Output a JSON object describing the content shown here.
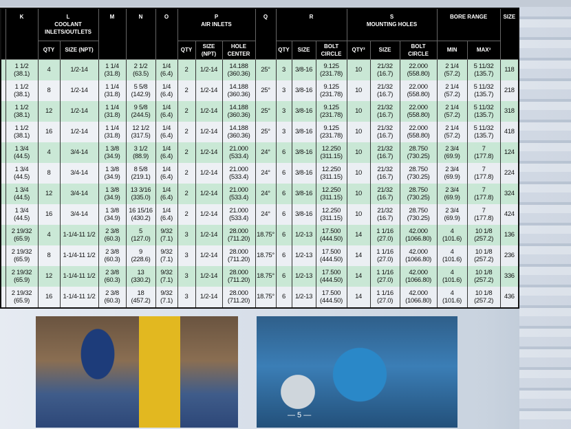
{
  "headers": {
    "k": "K",
    "l": "L",
    "l_sub": "COOLANT INLETS/OUTLETS",
    "m": "M",
    "n": "N",
    "o": "O",
    "p": "P",
    "p_sub": "AIR INLETS",
    "q": "Q",
    "r": "R",
    "s": "S",
    "s_sub": "MOUNTING HOLES",
    "bore": "BORE RANGE",
    "size": "SIZE",
    "qty": "QTY",
    "size_npt": "SIZE (NPT)",
    "hole_center": "HOLE CENTER",
    "size_plain": "SIZE",
    "bolt_circle": "BOLT CIRCLE",
    "qty2": "QTY²",
    "min": "MIN",
    "max3": "MAX³"
  },
  "rows": [
    {
      "k": [
        "1 1/2",
        "(38.1)"
      ],
      "lq": "4",
      "ls": "1/2-14",
      "m": [
        "1 1/4",
        "(31.8)"
      ],
      "n": [
        "2 1/2",
        "(63.5)"
      ],
      "o": [
        "1/4",
        "(6.4)"
      ],
      "pq": "2",
      "ps": "1/2-14",
      "ph": [
        "14.188",
        "(360.36)"
      ],
      "q": "25°",
      "rq": "3",
      "rs": "3/8-16",
      "rb": [
        "9.125",
        "(231.78)"
      ],
      "sq": "10",
      "ss": [
        "21/32",
        "(16.7)"
      ],
      "sb": [
        "22.000",
        "(558.80)"
      ],
      "min": [
        "2 1/4",
        "(57.2)"
      ],
      "max": [
        "5 11/32",
        "(135.7)"
      ],
      "size": "118"
    },
    {
      "k": [
        "1 1/2",
        "(38.1)"
      ],
      "lq": "8",
      "ls": "1/2-14",
      "m": [
        "1 1/4",
        "(31.8)"
      ],
      "n": [
        "5 5/8",
        "(142.9)"
      ],
      "o": [
        "1/4",
        "(6.4)"
      ],
      "pq": "2",
      "ps": "1/2-14",
      "ph": [
        "14.188",
        "(360.36)"
      ],
      "q": "25°",
      "rq": "3",
      "rs": "3/8-16",
      "rb": [
        "9.125",
        "(231.78)"
      ],
      "sq": "10",
      "ss": [
        "21/32",
        "(16.7)"
      ],
      "sb": [
        "22.000",
        "(558.80)"
      ],
      "min": [
        "2 1/4",
        "(57.2)"
      ],
      "max": [
        "5 11/32",
        "(135.7)"
      ],
      "size": "218"
    },
    {
      "k": [
        "1 1/2",
        "(38.1)"
      ],
      "lq": "12",
      "ls": "1/2-14",
      "m": [
        "1 1/4",
        "(31.8)"
      ],
      "n": [
        "9 5/8",
        "(244.5)"
      ],
      "o": [
        "1/4",
        "(6.4)"
      ],
      "pq": "2",
      "ps": "1/2-14",
      "ph": [
        "14.188",
        "(360.36)"
      ],
      "q": "25°",
      "rq": "3",
      "rs": "3/8-16",
      "rb": [
        "9.125",
        "(231.78)"
      ],
      "sq": "10",
      "ss": [
        "21/32",
        "(16.7)"
      ],
      "sb": [
        "22.000",
        "(558.80)"
      ],
      "min": [
        "2 1/4",
        "(57.2)"
      ],
      "max": [
        "5 11/32",
        "(135.7)"
      ],
      "size": "318"
    },
    {
      "k": [
        "1 1/2",
        "(38.1)"
      ],
      "lq": "16",
      "ls": "1/2-14",
      "m": [
        "1 1/4",
        "(31.8)"
      ],
      "n": [
        "12 1/2",
        "(317.5)"
      ],
      "o": [
        "1/4",
        "(6.4)"
      ],
      "pq": "2",
      "ps": "1/2-14",
      "ph": [
        "14.188",
        "(360.36)"
      ],
      "q": "25°",
      "rq": "3",
      "rs": "3/8-16",
      "rb": [
        "9.125",
        "(231.78)"
      ],
      "sq": "10",
      "ss": [
        "21/32",
        "(16.7)"
      ],
      "sb": [
        "22.000",
        "(558.80)"
      ],
      "min": [
        "2 1/4",
        "(57.2)"
      ],
      "max": [
        "5 11/32",
        "(135.7)"
      ],
      "size": "418"
    },
    {
      "k": [
        "1 3/4",
        "(44.5)"
      ],
      "lq": "4",
      "ls": "3/4-14",
      "m": [
        "1 3/8",
        "(34.9)"
      ],
      "n": [
        "3 1/2",
        "(88.9)"
      ],
      "o": [
        "1/4",
        "(6.4)"
      ],
      "pq": "2",
      "ps": "1/2-14",
      "ph": [
        "21.000",
        "(533.4)"
      ],
      "q": "24°",
      "rq": "6",
      "rs": "3/8-16",
      "rb": [
        "12.250",
        "(311.15)"
      ],
      "sq": "10",
      "ss": [
        "21/32",
        "(16.7)"
      ],
      "sb": [
        "28.750",
        "(730.25)"
      ],
      "min": [
        "2 3/4",
        "(69.9)"
      ],
      "max": [
        "7",
        "(177.8)"
      ],
      "size": "124"
    },
    {
      "k": [
        "1 3/4",
        "(44.5)"
      ],
      "lq": "8",
      "ls": "3/4-14",
      "m": [
        "1 3/8",
        "(34.9)"
      ],
      "n": [
        "8 5/8",
        "(219.1)"
      ],
      "o": [
        "1/4",
        "(6.4)"
      ],
      "pq": "2",
      "ps": "1/2-14",
      "ph": [
        "21.000",
        "(533.4)"
      ],
      "q": "24°",
      "rq": "6",
      "rs": "3/8-16",
      "rb": [
        "12.250",
        "(311.15)"
      ],
      "sq": "10",
      "ss": [
        "21/32",
        "(16.7)"
      ],
      "sb": [
        "28.750",
        "(730.25)"
      ],
      "min": [
        "2 3/4",
        "(69.9)"
      ],
      "max": [
        "7",
        "(177.8)"
      ],
      "size": "224"
    },
    {
      "k": [
        "1 3/4",
        "(44.5)"
      ],
      "lq": "12",
      "ls": "3/4-14",
      "m": [
        "1 3/8",
        "(34.9)"
      ],
      "n": [
        "13 3/16",
        "(335.0)"
      ],
      "o": [
        "1/4",
        "(6.4)"
      ],
      "pq": "2",
      "ps": "1/2-14",
      "ph": [
        "21.000",
        "(533.4)"
      ],
      "q": "24°",
      "rq": "6",
      "rs": "3/8-16",
      "rb": [
        "12.250",
        "(311.15)"
      ],
      "sq": "10",
      "ss": [
        "21/32",
        "(16.7)"
      ],
      "sb": [
        "28.750",
        "(730.25)"
      ],
      "min": [
        "2 3/4",
        "(69.9)"
      ],
      "max": [
        "7",
        "(177.8)"
      ],
      "size": "324"
    },
    {
      "k": [
        "1 3/4",
        "(44.5)"
      ],
      "lq": "16",
      "ls": "3/4-14",
      "m": [
        "1 3/8",
        "(34.9)"
      ],
      "n": [
        "16 15/16",
        "(430.2)"
      ],
      "o": [
        "1/4",
        "(6.4)"
      ],
      "pq": "2",
      "ps": "1/2-14",
      "ph": [
        "21.000",
        "(533.4)"
      ],
      "q": "24°",
      "rq": "6",
      "rs": "3/8-16",
      "rb": [
        "12.250",
        "(311.15)"
      ],
      "sq": "10",
      "ss": [
        "21/32",
        "(16.7)"
      ],
      "sb": [
        "28.750",
        "(730.25)"
      ],
      "min": [
        "2 3/4",
        "(69.9)"
      ],
      "max": [
        "7",
        "(177.8)"
      ],
      "size": "424"
    },
    {
      "k": [
        "2 19/32",
        "(65.9)"
      ],
      "lq": "4",
      "ls": "1-1/4-11 1/2",
      "m": [
        "2 3/8",
        "(60.3)"
      ],
      "n": [
        "5",
        "(127.0)"
      ],
      "o": [
        "9/32",
        "(7.1)"
      ],
      "pq": "3",
      "ps": "1/2-14",
      "ph": [
        "28.000",
        "(711.20)"
      ],
      "q": "18.75°",
      "rq": "6",
      "rs": "1/2-13",
      "rb": [
        "17.500",
        "(444.50)"
      ],
      "sq": "14",
      "ss": [
        "1 1/16",
        "(27.0)"
      ],
      "sb": [
        "42.000",
        "(1066.80)"
      ],
      "min": [
        "4",
        "(101.6)"
      ],
      "max": [
        "10 1/8",
        "(257.2)"
      ],
      "size": "136"
    },
    {
      "k": [
        "2 19/32",
        "(65.9)"
      ],
      "lq": "8",
      "ls": "1-1/4-11 1/2",
      "m": [
        "2 3/8",
        "(60.3)"
      ],
      "n": [
        "9",
        "(228.6)"
      ],
      "o": [
        "9/32",
        "(7.1)"
      ],
      "pq": "3",
      "ps": "1/2-14",
      "ph": [
        "28.000",
        "(711.20)"
      ],
      "q": "18.75°",
      "rq": "6",
      "rs": "1/2-13",
      "rb": [
        "17.500",
        "(444.50)"
      ],
      "sq": "14",
      "ss": [
        "1 1/16",
        "(27.0)"
      ],
      "sb": [
        "42.000",
        "(1066.80)"
      ],
      "min": [
        "4",
        "(101.6)"
      ],
      "max": [
        "10 1/8",
        "(257.2)"
      ],
      "size": "236"
    },
    {
      "k": [
        "2 19/32",
        "(65.9)"
      ],
      "lq": "12",
      "ls": "1-1/4-11 1/2",
      "m": [
        "2 3/8",
        "(60.3)"
      ],
      "n": [
        "13",
        "(330.2)"
      ],
      "o": [
        "9/32",
        "(7.1)"
      ],
      "pq": "3",
      "ps": "1/2-14",
      "ph": [
        "28.000",
        "(711.20)"
      ],
      "q": "18.75°",
      "rq": "6",
      "rs": "1/2-13",
      "rb": [
        "17.500",
        "(444.50)"
      ],
      "sq": "14",
      "ss": [
        "1 1/16",
        "(27.0)"
      ],
      "sb": [
        "42.000",
        "(1066.80)"
      ],
      "min": [
        "4",
        "(101.6)"
      ],
      "max": [
        "10 1/8",
        "(257.2)"
      ],
      "size": "336"
    },
    {
      "k": [
        "2 19/32",
        "(65.9)"
      ],
      "lq": "16",
      "ls": "1-1/4-11 1/2",
      "m": [
        "2 3/8",
        "(60.3)"
      ],
      "n": [
        "18",
        "(457.2)"
      ],
      "o": [
        "9/32",
        "(7.1)"
      ],
      "pq": "3",
      "ps": "1/2-14",
      "ph": [
        "28.000",
        "(711.20)"
      ],
      "q": "18.75°",
      "rq": "6",
      "rs": "1/2-13",
      "rb": [
        "17.500",
        "(444.50)"
      ],
      "sq": "14",
      "ss": [
        "1 1/16",
        "(27.0)"
      ],
      "sb": [
        "42.000",
        "(1066.80)"
      ],
      "min": [
        "4",
        "(101.6)"
      ],
      "max": [
        "10 1/8",
        "(257.2)"
      ],
      "size": "436"
    }
  ],
  "page_number": "— 5 —",
  "colors": {
    "row_green": "#c8e8d4",
    "header": "#000000"
  }
}
